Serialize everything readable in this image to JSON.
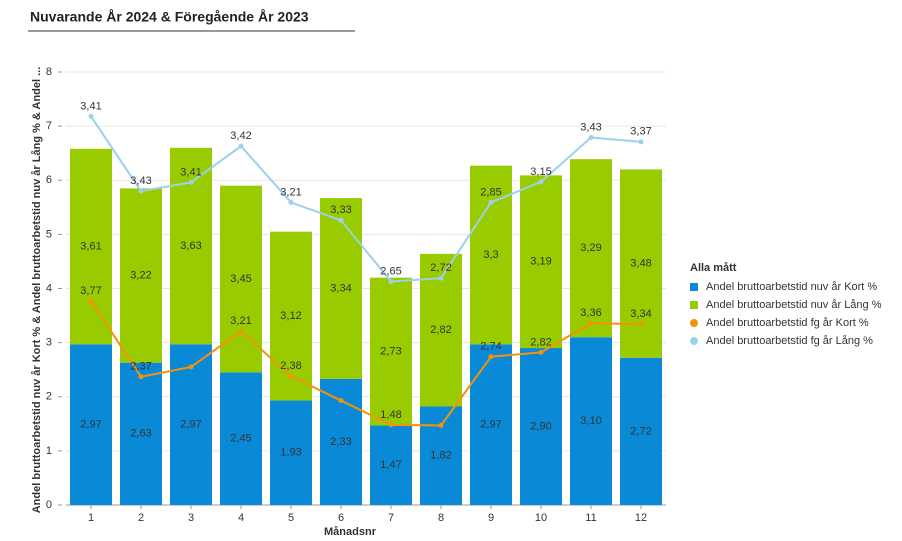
{
  "chart_data": {
    "type": "bar",
    "stacked": true,
    "title": "Nuvarande År 2024  &  Föregående År 2023",
    "x_label": "Månadsnr",
    "y_label": "Andel bruttoarbetstid nuv år Kort % & Andel bruttoarbetstid nuv år Lång % & Andel ...",
    "legend_title": "Alla mått",
    "legend": "right",
    "categories": [
      "1",
      "2",
      "3",
      "4",
      "5",
      "6",
      "7",
      "8",
      "9",
      "10",
      "11",
      "12"
    ],
    "ylim": [
      0,
      8
    ],
    "yticks": [
      0,
      1,
      2,
      3,
      4,
      5,
      6,
      7,
      8
    ],
    "grid": true,
    "series": [
      {
        "name": "Andel bruttoarbetstid nuv år Kort %",
        "type": "bar",
        "color": "#0a8ad6",
        "values": [
          2.97,
          2.63,
          2.97,
          2.45,
          1.93,
          2.33,
          1.47,
          1.82,
          2.97,
          2.9,
          3.1,
          2.72
        ],
        "value_labels": [
          "2,97",
          "2,63",
          "2,97",
          "2,45",
          "1,93",
          "2,33",
          "1,47",
          "1,82",
          "2,97",
          "2,90",
          "3,10",
          "2,72"
        ]
      },
      {
        "name": "Andel bruttoarbetstid nuv år Lång %",
        "type": "bar",
        "color": "#99cc00",
        "values": [
          3.61,
          3.22,
          3.63,
          3.45,
          3.12,
          3.34,
          2.73,
          2.82,
          3.3,
          3.19,
          3.29,
          3.48
        ],
        "value_labels": [
          "3,61",
          "3,22",
          "3,63",
          "3,45",
          "3,12",
          "3,34",
          "2,73",
          "2,82",
          "3,3",
          "3,19",
          "3,29",
          "3,48"
        ]
      },
      {
        "name": "Andel bruttoarbetstid fg år Kort %",
        "type": "line",
        "color": "#f0940a",
        "values": [
          3.77,
          2.37,
          2.55,
          3.21,
          2.38,
          1.93,
          1.48,
          1.47,
          2.74,
          2.82,
          3.36,
          3.34
        ],
        "value_labels": [
          "3,77",
          "2,37",
          null,
          "3,21",
          "2,38",
          null,
          "1,48",
          null,
          "2,74",
          "2,82",
          "3,36",
          "3,34"
        ]
      },
      {
        "name": "Andel bruttoarbetstid fg år Lång %",
        "type": "line",
        "color": "#9dd0ec",
        "values": [
          3.41,
          3.43,
          3.41,
          3.42,
          3.21,
          3.33,
          2.65,
          2.72,
          2.85,
          3.15,
          3.43,
          3.37
        ],
        "value_labels": [
          "3,41",
          "3,43",
          "3,41",
          "3,42",
          "3,21",
          "3,33",
          "2,65",
          "2,72",
          "2,85",
          "3,15",
          "3,43",
          "3,37"
        ]
      }
    ]
  }
}
